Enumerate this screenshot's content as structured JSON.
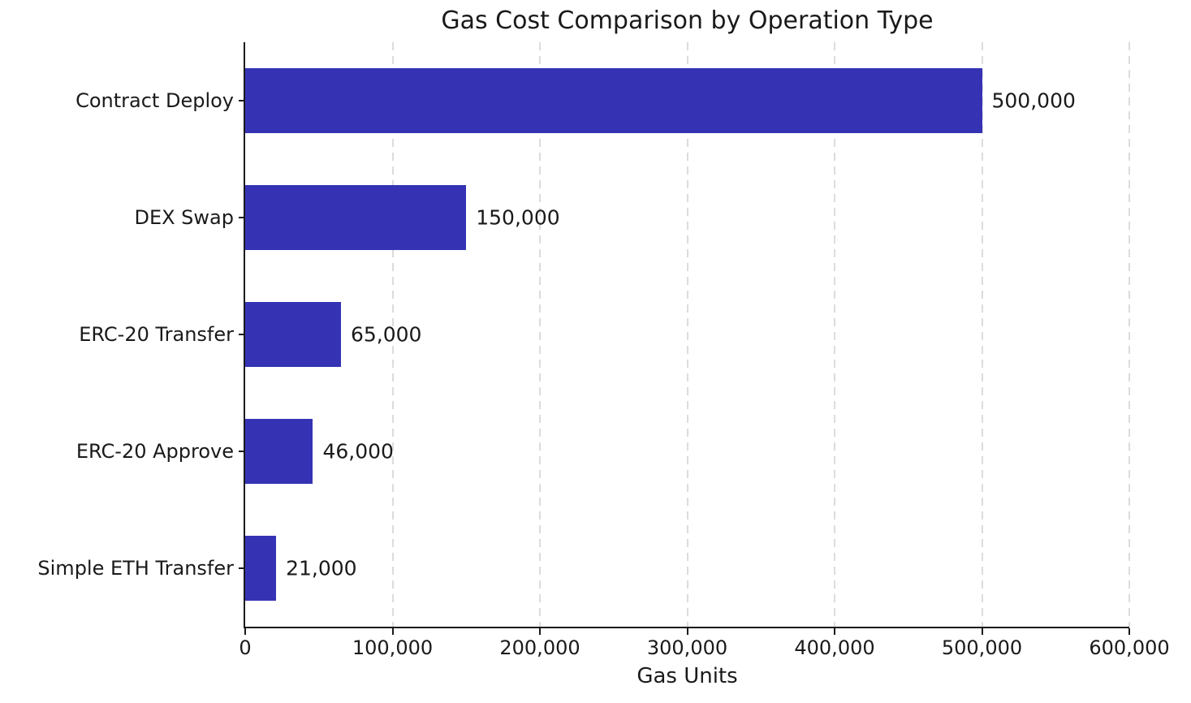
{
  "chart_data": {
    "type": "bar",
    "orientation": "horizontal",
    "title": "Gas Cost Comparison by Operation Type",
    "xlabel": "Gas Units",
    "ylabel": "",
    "categories": [
      "Contract Deploy",
      "DEX Swap",
      "ERC-20 Transfer",
      "ERC-20 Approve",
      "Simple ETH Transfer"
    ],
    "values": [
      500000,
      150000,
      65000,
      46000,
      21000
    ],
    "value_labels": [
      "500,000",
      "150,000",
      "65,000",
      "46,000",
      "21,000"
    ],
    "xlim": [
      0,
      600000
    ],
    "x_ticks": [
      0,
      100000,
      200000,
      300000,
      400000,
      500000,
      600000
    ],
    "x_tick_labels": [
      "0",
      "100,000",
      "200,000",
      "300,000",
      "400,000",
      "500,000",
      "600,000"
    ],
    "grid": "vertical-dashed",
    "legend": "none",
    "colors": {
      "bar": "#3533b4",
      "grid": "#dcdcdc",
      "text": "#1a1a1a",
      "axis": "#1a1a1a",
      "background": "#ffffff"
    }
  }
}
